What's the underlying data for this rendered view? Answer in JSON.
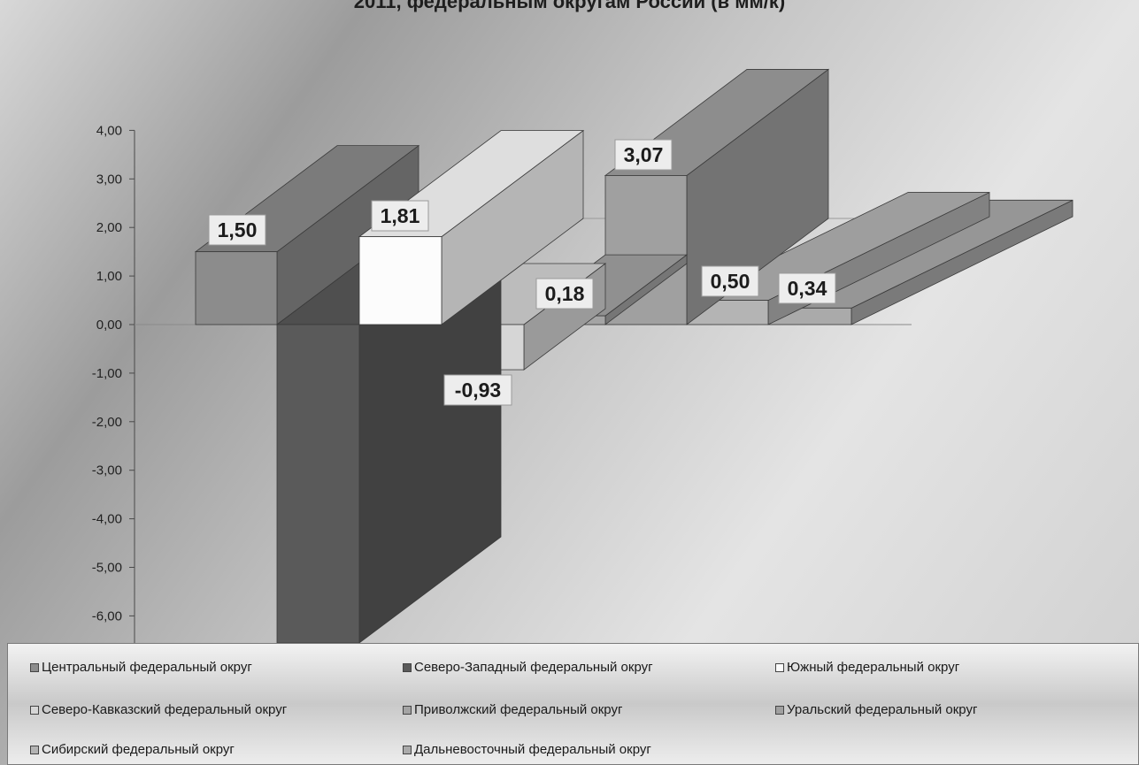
{
  "chart_data": {
    "type": "bar",
    "title": "",
    "title_visible_fragment": "2011, федеральным округам России (в мм/к)",
    "ylim": [
      -6.0,
      4.0
    ],
    "yticks": [
      "4,00",
      "3,00",
      "2,00",
      "1,00",
      "0,00",
      "-1,00",
      "-2,00",
      "-3,00",
      "-4,00",
      "-5,00",
      "-6,00"
    ],
    "grid": false,
    "legend_position": "bottom",
    "style": "3d-column",
    "series": [
      {
        "name": "Центральный федеральный округ",
        "value": 1.5,
        "label": "1,50",
        "color": "#8c8c8c"
      },
      {
        "name": "Северо-Западный федеральный округ",
        "value": -6.6,
        "label": "",
        "color": "#5a5a5a"
      },
      {
        "name": "Южный федеральный округ",
        "value": 1.81,
        "label": "1,81",
        "color": "#fcfcfc"
      },
      {
        "name": "Северо-Кавказский федеральный округ",
        "value": -0.93,
        "label": "-0,93",
        "color": "#d6d6d6"
      },
      {
        "name": "Приволжский федеральный округ",
        "value": 0.18,
        "label": "0,18",
        "color": "#a4a4a4"
      },
      {
        "name": "Уральский федеральный округ",
        "value": 3.07,
        "label": "3,07",
        "color": "#a0a0a0"
      },
      {
        "name": "Сибирский федеральный округ",
        "value": 0.5,
        "label": "0,50",
        "color": "#b4b4b4"
      },
      {
        "name": "Дальневосточный федеральный округ",
        "value": 0.34,
        "label": "0,34",
        "color": "#aaaaaa"
      }
    ]
  }
}
